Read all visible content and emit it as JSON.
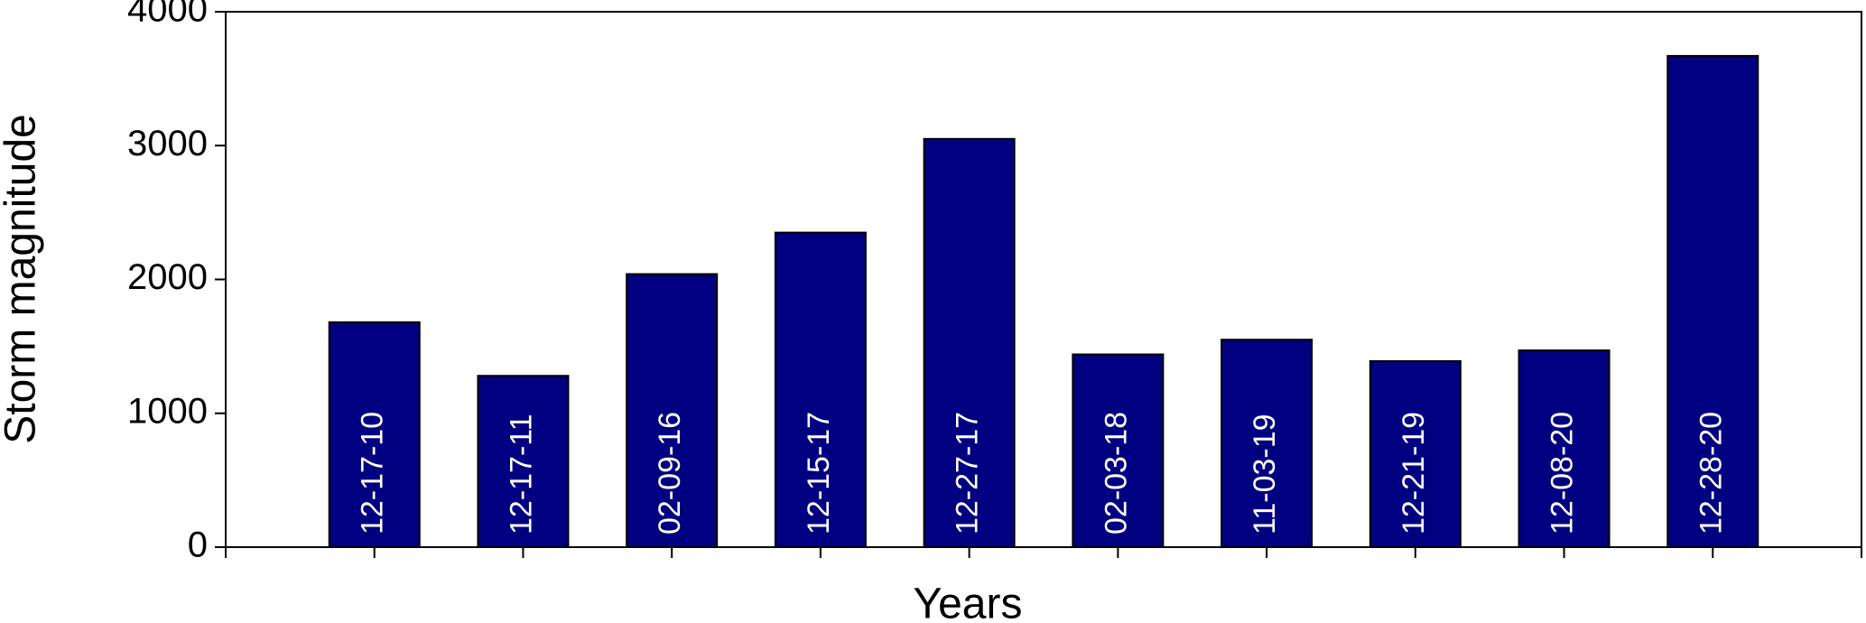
{
  "chart_data": {
    "type": "bar",
    "x_label": "Years",
    "y_label": "Storm magnitude",
    "categories": [
      "12-17-10",
      "12-17-11",
      "02-09-16",
      "12-15-17",
      "12-27-17",
      "02-03-18",
      "11-03-19",
      "12-21-19",
      "12-08-20",
      "12-28-20"
    ],
    "values": [
      1680,
      1280,
      2040,
      2350,
      3050,
      1440,
      1550,
      1390,
      1470,
      3670
    ],
    "color": "#000080",
    "ylim": [
      0,
      4000
    ],
    "yticks": [
      0,
      1000,
      2000,
      3000,
      4000
    ],
    "grid": false
  }
}
